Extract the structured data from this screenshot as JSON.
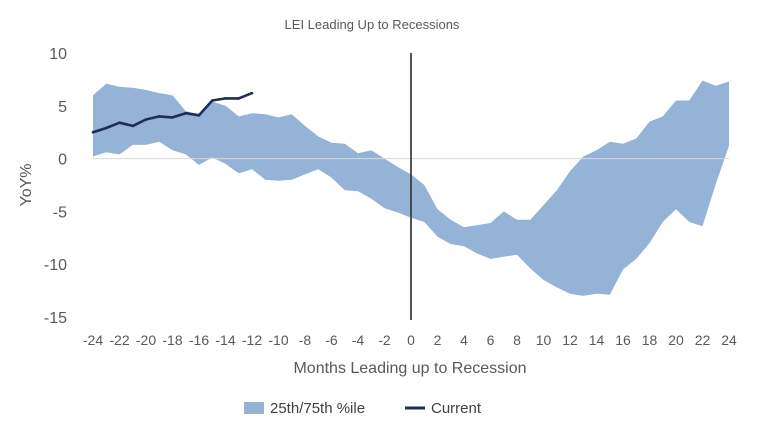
{
  "chart_data": {
    "type": "area",
    "title": "LEI Leading Up to Recessions",
    "xlabel": "Months Leading up to Recession",
    "ylabel": "YoY%",
    "xlim": [
      -24,
      24
    ],
    "ylim": [
      -15,
      10
    ],
    "yticks": [
      10,
      5,
      0,
      -5,
      -10,
      -15
    ],
    "xticks": [
      -24,
      -22,
      -20,
      -18,
      -16,
      -14,
      -12,
      -10,
      -8,
      -6,
      -4,
      -2,
      0,
      2,
      4,
      6,
      8,
      10,
      12,
      14,
      16,
      18,
      20,
      22,
      24
    ],
    "x": [
      -24,
      -23,
      -22,
      -21,
      -20,
      -19,
      -18,
      -17,
      -16,
      -15,
      -14,
      -13,
      -12,
      -11,
      -10,
      -9,
      -8,
      -7,
      -6,
      -5,
      -4,
      -3,
      -2,
      -1,
      0,
      1,
      2,
      3,
      4,
      5,
      6,
      7,
      8,
      9,
      10,
      11,
      12,
      13,
      14,
      15,
      16,
      17,
      18,
      19,
      20,
      21,
      22,
      23,
      24
    ],
    "series": [
      {
        "name": "25th/75th %ile",
        "kind": "band",
        "color": "#95b3d7",
        "upper": [
          6.0,
          7.1,
          6.8,
          6.7,
          6.5,
          6.2,
          6.0,
          4.5,
          4.2,
          5.4,
          5.0,
          4.0,
          4.3,
          4.2,
          3.9,
          4.2,
          3.1,
          2.1,
          1.5,
          1.4,
          0.5,
          0.8,
          0.0,
          -0.8,
          -1.5,
          -2.5,
          -4.8,
          -5.8,
          -6.5,
          -6.3,
          -6.1,
          -5.0,
          -5.8,
          -5.8,
          -4.4,
          -3.0,
          -1.2,
          0.2,
          0.8,
          1.6,
          1.4,
          1.9,
          3.5,
          4.0,
          5.5,
          5.5,
          7.4,
          6.9,
          7.3
        ],
        "lower": [
          0.2,
          0.6,
          0.4,
          1.3,
          1.3,
          1.6,
          0.8,
          0.4,
          -0.6,
          0.1,
          -0.5,
          -1.4,
          -1.0,
          -2.0,
          -2.1,
          -2.0,
          -1.5,
          -1.0,
          -1.8,
          -3.0,
          -3.1,
          -3.8,
          -4.7,
          -5.1,
          -5.6,
          -6.0,
          -7.4,
          -8.1,
          -8.3,
          -9.0,
          -9.5,
          -9.3,
          -9.1,
          -10.4,
          -11.5,
          -12.2,
          -12.8,
          -13.0,
          -12.8,
          -12.9,
          -10.5,
          -9.5,
          -8.0,
          -6.0,
          -4.8,
          -6.0,
          -6.4,
          -2.4,
          1.2
        ]
      },
      {
        "name": "Current",
        "kind": "line",
        "color": "#1f2d5c",
        "x": [
          -24,
          -23,
          -22,
          -21,
          -20,
          -19,
          -18,
          -17,
          -16,
          -15,
          -14,
          -13,
          -12
        ],
        "values": [
          2.5,
          2.9,
          3.4,
          3.1,
          3.7,
          4.0,
          3.9,
          4.3,
          4.1,
          5.5,
          5.7,
          5.7,
          6.2
        ]
      }
    ],
    "reference_line": {
      "x": 0,
      "color": "#404040"
    },
    "legend": {
      "position": "bottom"
    },
    "grid": false
  }
}
